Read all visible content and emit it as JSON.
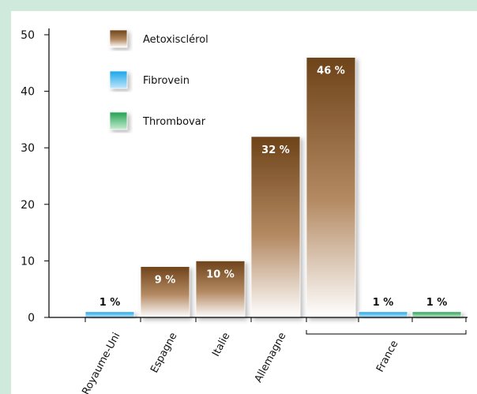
{
  "colors": {
    "background": "#cfe9dc",
    "panel": "#ffffff",
    "brown_top": "#6e4319",
    "brown_bottom": "#ffffff",
    "blue": "#1aa5e8",
    "green": "#22a14e",
    "label_on_bar": "#ffffff",
    "label_above_bar": "#111111"
  },
  "chart_data": {
    "type": "bar",
    "title": "",
    "xlabel": "",
    "ylabel": "",
    "ylim": [
      0,
      50
    ],
    "yticks": [
      0,
      10,
      20,
      30,
      40,
      50
    ],
    "grid": false,
    "legend_position": "top-left",
    "categories": [
      "Royaume-Uni",
      "Espagne",
      "Italie",
      "Allemagne",
      "France"
    ],
    "series": [
      {
        "name": "Aetoxisclérol",
        "color": "brown"
      },
      {
        "name": "Fibrovein",
        "color": "blue"
      },
      {
        "name": "Thrombovar",
        "color": "green"
      }
    ],
    "bars": [
      {
        "category": "Royaume-Uni",
        "series": "Fibrovein",
        "value": 1,
        "label": "1 %"
      },
      {
        "category": "Espagne",
        "series": "Aetoxisclérol",
        "value": 9,
        "label": "9 %"
      },
      {
        "category": "Italie",
        "series": "Aetoxisclérol",
        "value": 10,
        "label": "10 %"
      },
      {
        "category": "Allemagne",
        "series": "Aetoxisclérol",
        "value": 32,
        "label": "32 %"
      },
      {
        "category": "France",
        "series": "Aetoxisclérol",
        "value": 46,
        "label": "46 %"
      },
      {
        "category": "France",
        "series": "Fibrovein",
        "value": 1,
        "label": "1 %"
      },
      {
        "category": "France",
        "series": "Thrombovar",
        "value": 1,
        "label": "1 %"
      }
    ]
  }
}
